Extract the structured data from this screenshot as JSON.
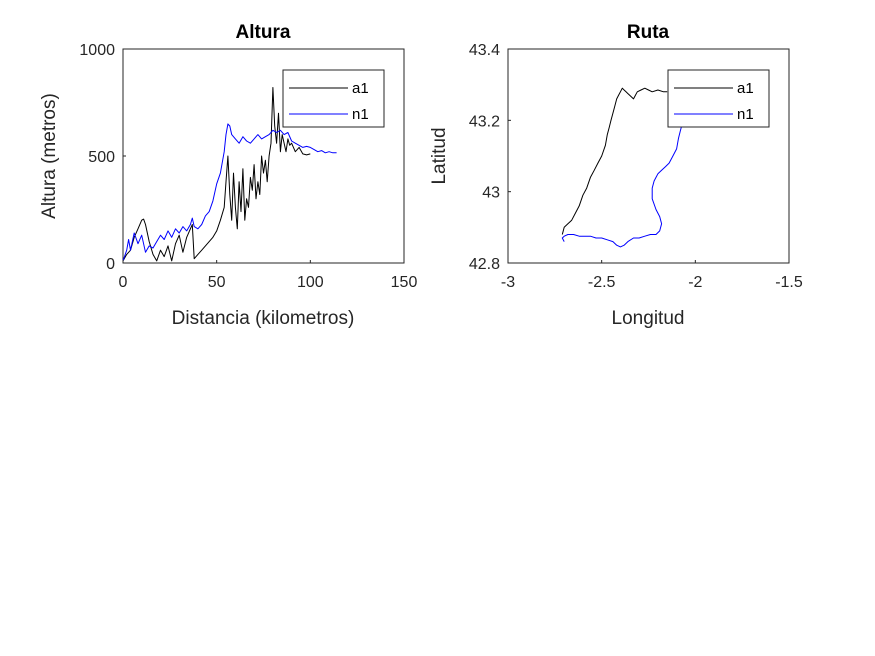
{
  "chart_data": [
    {
      "type": "line",
      "title": "Altura",
      "xlabel": "Distancia (kilometros)",
      "ylabel": "Altura (metros)",
      "xlim": [
        0,
        150
      ],
      "ylim": [
        0,
        1000
      ],
      "xticks": [
        "0",
        "50",
        "100",
        "150"
      ],
      "yticks": [
        "0",
        "500",
        "1000"
      ],
      "grid": false,
      "legend": "top-right",
      "series": [
        {
          "name": "a1",
          "color": "#000000",
          "x": [
            0,
            2,
            4,
            6,
            8,
            10,
            11,
            12,
            14,
            16,
            18,
            20,
            22,
            24,
            26,
            28,
            30,
            32,
            34,
            36,
            37,
            38,
            40,
            42,
            44,
            46,
            48,
            50,
            52,
            54,
            55,
            56,
            57,
            58,
            59,
            60,
            61,
            62,
            63,
            64,
            65,
            66,
            67,
            68,
            69,
            70,
            71,
            72,
            73,
            74,
            75,
            76,
            77,
            78,
            79,
            80,
            81,
            82,
            83,
            84,
            85,
            86,
            87,
            88,
            89,
            90,
            92,
            94,
            96,
            98,
            100
          ],
          "y": [
            10,
            40,
            60,
            120,
            160,
            200,
            205,
            180,
            100,
            40,
            10,
            60,
            30,
            80,
            10,
            90,
            130,
            50,
            120,
            160,
            180,
            20,
            40,
            60,
            80,
            100,
            120,
            150,
            200,
            260,
            380,
            500,
            320,
            200,
            420,
            260,
            160,
            380,
            240,
            440,
            200,
            300,
            260,
            400,
            340,
            460,
            300,
            380,
            320,
            500,
            420,
            480,
            380,
            500,
            560,
            820,
            640,
            560,
            700,
            520,
            600,
            560,
            520,
            580,
            550,
            560,
            520,
            540,
            510,
            505,
            510
          ]
        },
        {
          "name": "n1",
          "color": "#0000ff",
          "x": [
            0,
            2,
            3,
            4,
            6,
            8,
            10,
            12,
            14,
            16,
            18,
            20,
            22,
            24,
            26,
            28,
            30,
            32,
            34,
            36,
            37,
            38,
            40,
            42,
            44,
            46,
            48,
            50,
            52,
            54,
            55,
            56,
            57,
            58,
            60,
            62,
            64,
            66,
            68,
            70,
            72,
            74,
            76,
            78,
            80,
            82,
            84,
            86,
            88,
            90,
            92,
            94,
            96,
            98,
            100,
            102,
            104,
            106,
            108,
            110,
            112,
            114
          ],
          "y": [
            10,
            60,
            110,
            60,
            140,
            90,
            130,
            50,
            80,
            70,
            100,
            130,
            110,
            150,
            120,
            160,
            140,
            170,
            150,
            180,
            210,
            170,
            160,
            180,
            220,
            240,
            290,
            370,
            420,
            520,
            600,
            650,
            640,
            600,
            580,
            560,
            590,
            570,
            560,
            580,
            600,
            580,
            590,
            600,
            620,
            610,
            620,
            600,
            610,
            570,
            560,
            550,
            540,
            545,
            540,
            530,
            520,
            525,
            515,
            520,
            515,
            515
          ]
        }
      ]
    },
    {
      "type": "line",
      "title": "Ruta",
      "xlabel": "Longitud",
      "ylabel": "Latitud",
      "xlim": [
        -3,
        -1.5
      ],
      "ylim": [
        42.8,
        43.4
      ],
      "xticks": [
        "-3",
        "-2.5",
        "-2",
        "-1.5"
      ],
      "yticks": [
        "42.8",
        "43",
        "43.2",
        "43.4"
      ],
      "grid": false,
      "legend": "top-right",
      "series": [
        {
          "name": "a1",
          "color": "#000000",
          "x": [
            -2.71,
            -2.7,
            -2.68,
            -2.66,
            -2.64,
            -2.62,
            -2.6,
            -2.58,
            -2.56,
            -2.54,
            -2.52,
            -2.5,
            -2.48,
            -2.47,
            -2.46,
            -2.45,
            -2.44,
            -2.43,
            -2.42,
            -2.41,
            -2.4,
            -2.39,
            -2.38,
            -2.37,
            -2.36,
            -2.35,
            -2.33,
            -2.31,
            -2.29,
            -2.27,
            -2.25,
            -2.23,
            -2.2,
            -2.17,
            -2.15
          ],
          "y": [
            42.88,
            42.9,
            42.91,
            42.92,
            42.94,
            42.96,
            42.99,
            43.01,
            43.04,
            43.06,
            43.08,
            43.1,
            43.13,
            43.16,
            43.18,
            43.2,
            43.22,
            43.24,
            43.26,
            43.27,
            43.28,
            43.29,
            43.285,
            43.28,
            43.275,
            43.27,
            43.26,
            43.28,
            43.285,
            43.29,
            43.285,
            43.28,
            43.285,
            43.28,
            43.28
          ]
        },
        {
          "name": "n1",
          "color": "#0000ff",
          "x": [
            -2.7,
            -2.71,
            -2.7,
            -2.68,
            -2.65,
            -2.62,
            -2.59,
            -2.56,
            -2.53,
            -2.5,
            -2.47,
            -2.44,
            -2.42,
            -2.4,
            -2.38,
            -2.36,
            -2.33,
            -2.3,
            -2.27,
            -2.24,
            -2.21,
            -2.19,
            -2.18,
            -2.19,
            -2.21,
            -2.23,
            -2.23,
            -2.22,
            -2.21,
            -2.2,
            -2.18,
            -2.16,
            -2.14,
            -2.12,
            -2.1,
            -2.09,
            -2.08,
            -2.07,
            -2.06,
            -2.05
          ],
          "y": [
            42.86,
            42.87,
            42.875,
            42.88,
            42.88,
            42.875,
            42.875,
            42.875,
            42.87,
            42.87,
            42.865,
            42.86,
            42.85,
            42.845,
            42.85,
            42.86,
            42.87,
            42.87,
            42.875,
            42.88,
            42.88,
            42.89,
            42.91,
            42.93,
            42.95,
            42.98,
            43.01,
            43.03,
            43.04,
            43.05,
            43.06,
            43.07,
            43.08,
            43.1,
            43.12,
            43.15,
            43.17,
            43.19,
            43.21,
            43.23
          ]
        }
      ]
    }
  ]
}
